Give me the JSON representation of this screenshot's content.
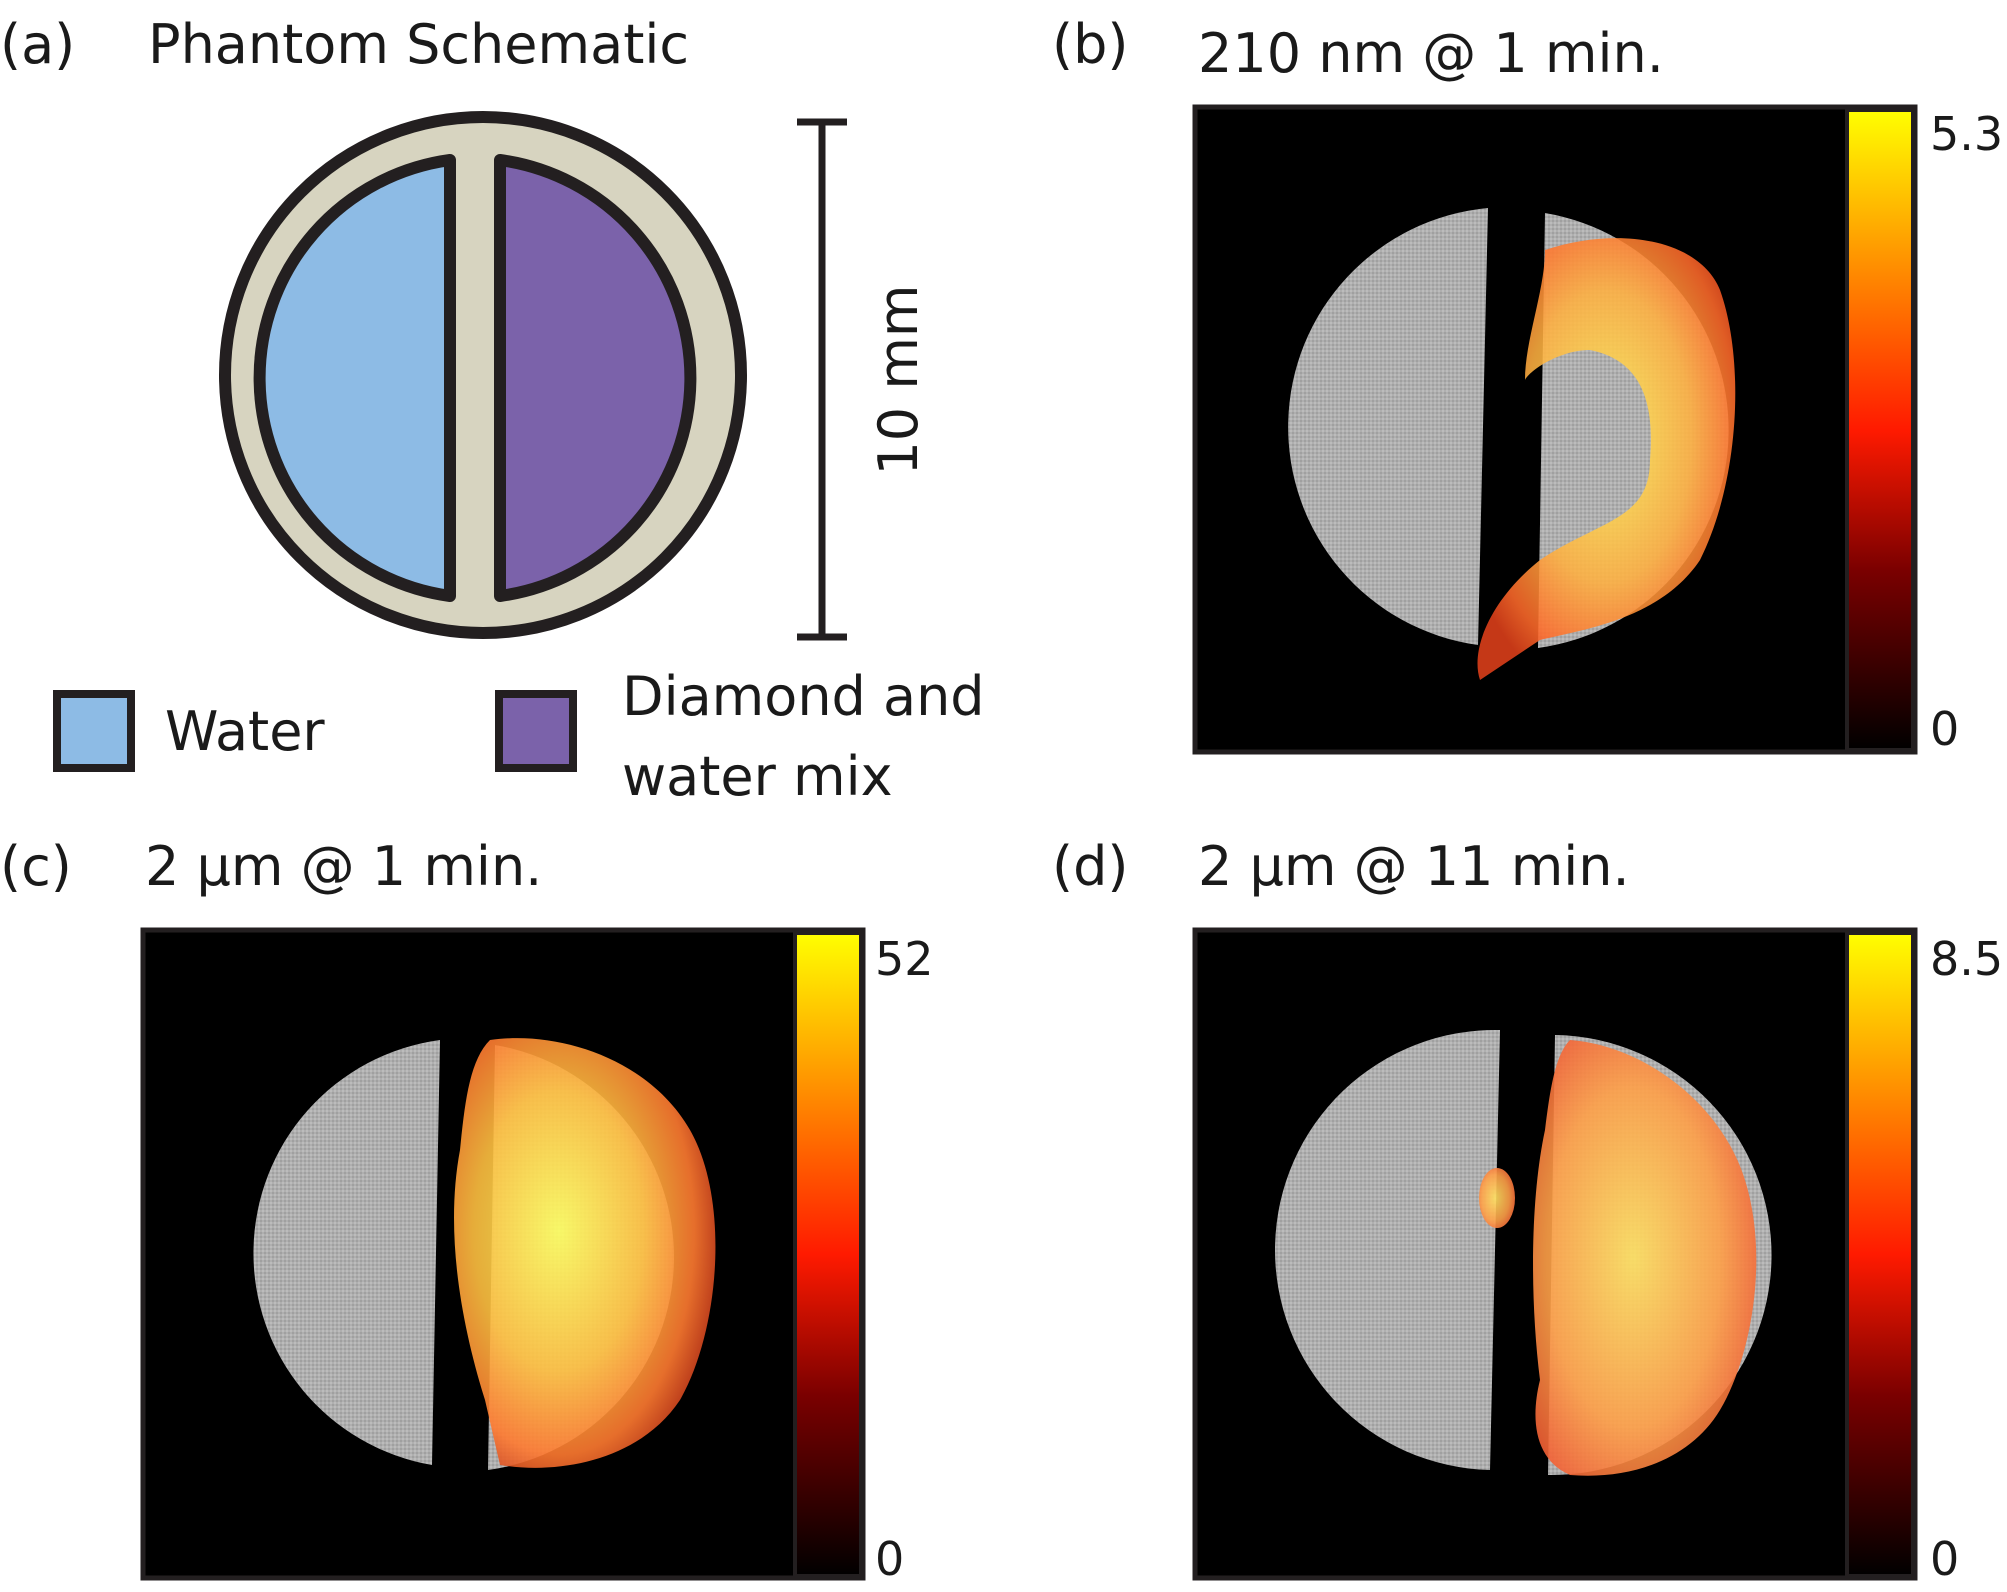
{
  "panel_a": {
    "label": "(a)",
    "title": "Phantom Schematic",
    "scale_label": "10 mm",
    "legend": {
      "water": "Water",
      "mix_line1": "Diamond and",
      "mix_line2": "water mix"
    },
    "colors": {
      "water": "#8dbbe5",
      "mix": "#7b62aa",
      "wall": "#d7d4c0",
      "outline": "#231f20"
    }
  },
  "panels": [
    {
      "label": "(b)",
      "title": "210 nm @ 1 min.",
      "cbar_max": "5.3",
      "cbar_min": "0"
    },
    {
      "label": "(c)",
      "title": "2 µm @ 1 min.",
      "cbar_max": "52",
      "cbar_min": "0"
    },
    {
      "label": "(d)",
      "title": "2 µm @ 11 min.",
      "cbar_max": "8.5",
      "cbar_min": "0"
    }
  ],
  "colormap": [
    "#000000",
    "#7a0000",
    "#ff0000",
    "#ff8000",
    "#ffff00"
  ]
}
